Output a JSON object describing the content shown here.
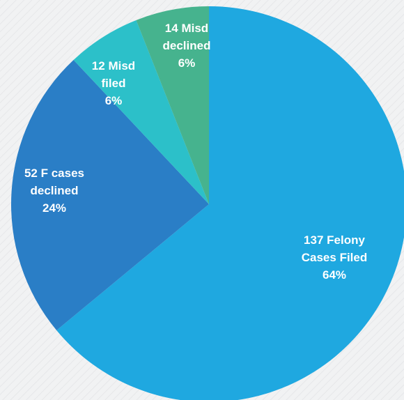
{
  "chart_data": {
    "type": "pie",
    "categories": [
      "Felony Cases Filed",
      "F cases declined",
      "Misd filed",
      "Misd declined"
    ],
    "counts": [
      137,
      52,
      12,
      14
    ],
    "values": [
      64,
      24,
      6,
      6
    ],
    "value_labels": [
      "64%",
      "24%",
      "6%",
      "6%"
    ],
    "colors": [
      "#1fa8e0",
      "#2a7ec6",
      "#2cc0c9",
      "#46b38e"
    ]
  }
}
